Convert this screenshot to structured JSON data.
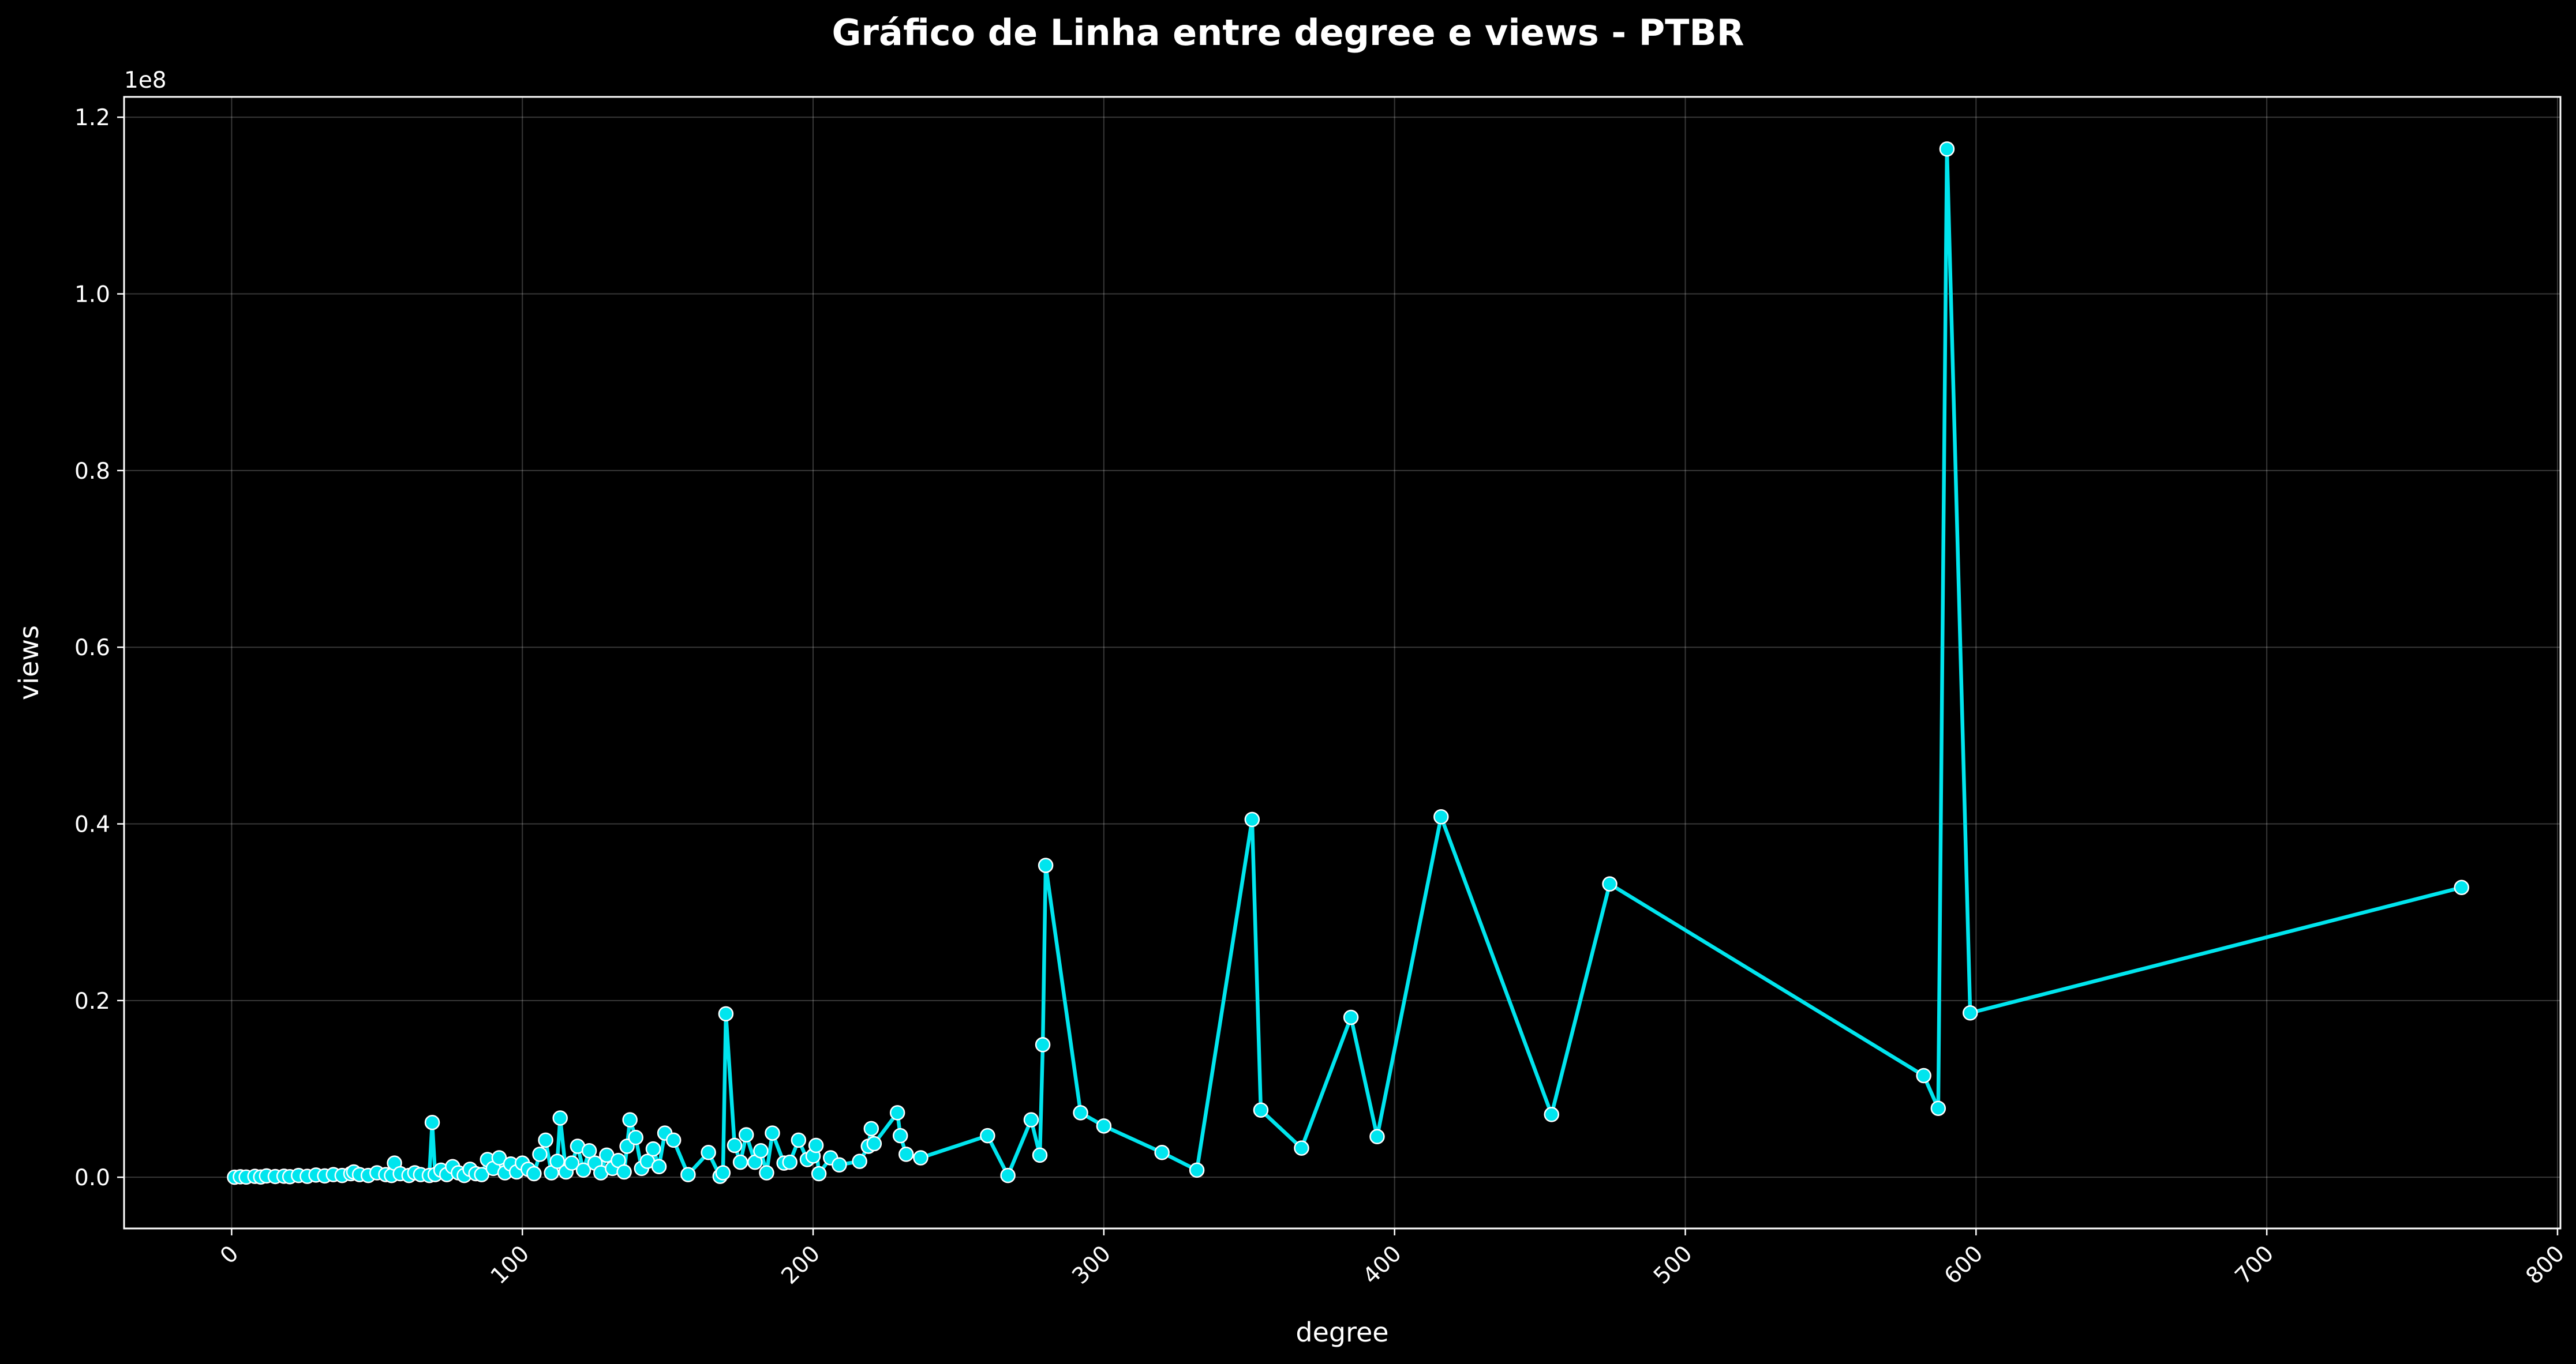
{
  "chart_data": {
    "type": "line",
    "title": "Gráfico de Linha entre degree e views - PTBR",
    "xlabel": "degree",
    "ylabel": "views",
    "y_offset_label": "1e8",
    "xlim": [
      -37,
      801
    ],
    "ylim": [
      -5800000,
      122300000
    ],
    "xticks": [
      0,
      100,
      200,
      300,
      400,
      500,
      600,
      700,
      800
    ],
    "xtick_labels": [
      "0",
      "100",
      "200",
      "300",
      "400",
      "500",
      "600",
      "700",
      "800"
    ],
    "yticks": [
      0,
      20000000,
      40000000,
      60000000,
      80000000,
      100000000,
      120000000
    ],
    "ytick_labels": [
      "0.0",
      "0.2",
      "0.4",
      "0.6",
      "0.8",
      "1.0",
      "1.2"
    ],
    "grid": true,
    "colors": {
      "background": "#000000",
      "line": "#00e5ee",
      "marker_fill": "#00e5ee",
      "marker_edge": "#ffffff",
      "grid": "#ffffff"
    },
    "series": [
      {
        "x": [
          1,
          3,
          5,
          8,
          10,
          12,
          15,
          18,
          20,
          23,
          26,
          29,
          32,
          35,
          38,
          41,
          42,
          44,
          47,
          50,
          53,
          55,
          56,
          58,
          61,
          63,
          65,
          68,
          69,
          70,
          72,
          74,
          76,
          78,
          80,
          82,
          84,
          86,
          88,
          90,
          92,
          94,
          96,
          98,
          100,
          102,
          104,
          106,
          108,
          110,
          112,
          113,
          115,
          117,
          119,
          121,
          123,
          125,
          127,
          129,
          131,
          133,
          135,
          136,
          137,
          139,
          141,
          143,
          145,
          147,
          149,
          152,
          157,
          164,
          168,
          169,
          170,
          173,
          175,
          177,
          180,
          182,
          184,
          186,
          190,
          192,
          195,
          198,
          200,
          201,
          202,
          206,
          209,
          216,
          219,
          220,
          221,
          229,
          230,
          232,
          237,
          260,
          267,
          275,
          278,
          279,
          280,
          292,
          300,
          320,
          332,
          351,
          354,
          368,
          385,
          394,
          416,
          454,
          474,
          582,
          587,
          590,
          598,
          767
        ],
        "y": [
          0,
          50000,
          20000,
          100000,
          30000,
          150000,
          80000,
          120000,
          60000,
          200000,
          100000,
          250000,
          150000,
          300000,
          200000,
          400000,
          600000,
          300000,
          200000,
          500000,
          300000,
          200000,
          1600000,
          400000,
          200000,
          500000,
          300000,
          200000,
          6200000,
          300000,
          800000,
          300000,
          1200000,
          500000,
          200000,
          900000,
          400000,
          300000,
          2000000,
          1000000,
          2200000,
          500000,
          1500000,
          600000,
          1600000,
          900000,
          400000,
          2600000,
          4200000,
          500000,
          1800000,
          6700000,
          600000,
          1600000,
          3500000,
          800000,
          3000000,
          1600000,
          500000,
          2500000,
          1000000,
          1900000,
          600000,
          3500000,
          6500000,
          4500000,
          1000000,
          1800000,
          3200000,
          1200000,
          5000000,
          4200000,
          300000,
          2800000,
          100000,
          500000,
          18500000,
          3600000,
          1700000,
          4800000,
          1700000,
          3000000,
          500000,
          5000000,
          1600000,
          1700000,
          4200000,
          2000000,
          2400000,
          3600000,
          400000,
          2200000,
          1400000,
          1800000,
          3500000,
          5500000,
          3800000,
          7300000,
          4700000,
          2600000,
          2200000,
          4700000,
          200000,
          6500000,
          2500000,
          15000000,
          35300000,
          7300000,
          5800000,
          2800000,
          800000,
          40500000,
          7600000,
          3300000,
          18100000,
          4600000,
          40800000,
          7100000,
          33200000,
          11500000,
          7800000,
          116400000,
          18600000,
          32800000
        ]
      }
    ]
  }
}
